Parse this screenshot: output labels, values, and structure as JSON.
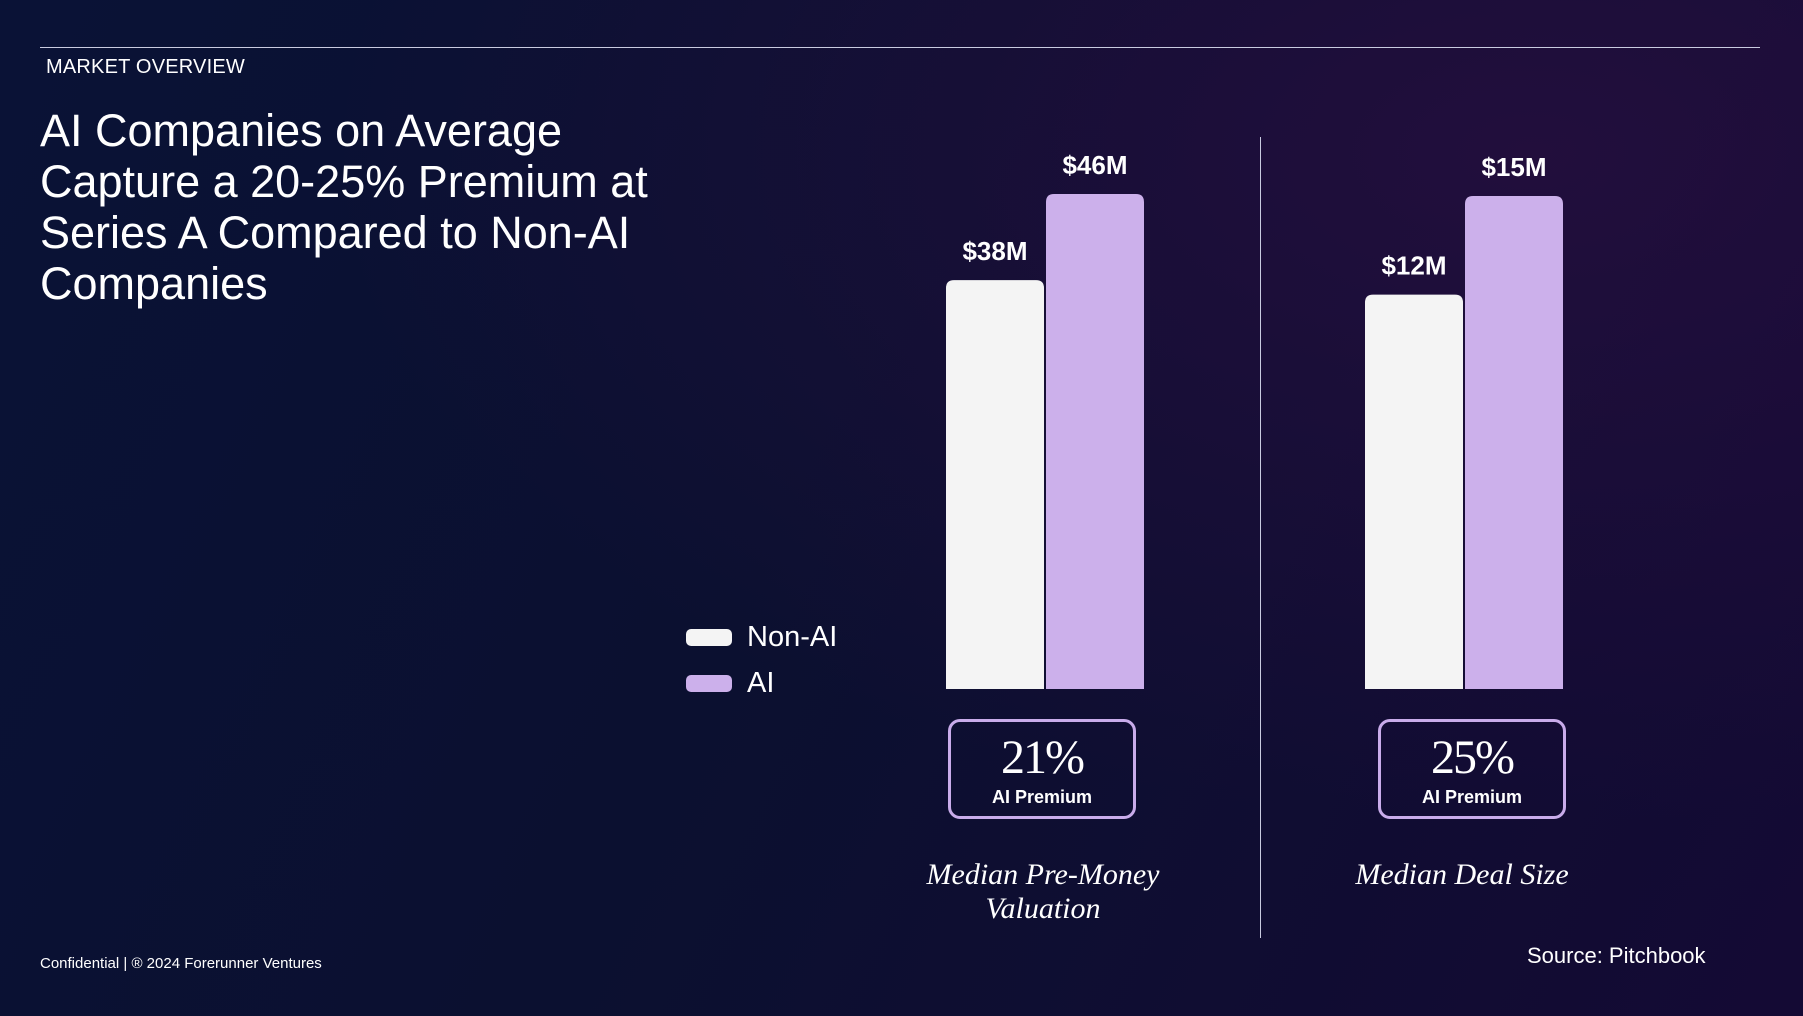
{
  "header": {
    "section_label": "MARKET OVERVIEW",
    "title": "AI Companies on Average Capture a 20-25% Premium at Series A Compared to Non-AI Companies"
  },
  "footer": {
    "confidential": "Confidential | ® 2024 Forerunner Ventures",
    "source": "Source: Pitchbook"
  },
  "colors": {
    "non_ai": "#f4f4f4",
    "ai": "#ccb0eb",
    "premium_border": "#c9aceb",
    "background": "#0b1030"
  },
  "legend": [
    {
      "label": "Non-AI",
      "color": "#f4f4f4"
    },
    {
      "label": "AI",
      "color": "#ccb0eb"
    }
  ],
  "chart_data": [
    {
      "type": "bar",
      "title": "Median Pre-Money Valuation",
      "categories": [
        "Non-AI",
        "AI"
      ],
      "values": [
        38,
        46
      ],
      "value_labels": [
        "$38M",
        "$46M"
      ],
      "unit": "$M",
      "premium": {
        "value": "21%",
        "label": "AI Premium"
      }
    },
    {
      "type": "bar",
      "title": "Median Deal Size",
      "categories": [
        "Non-AI",
        "AI"
      ],
      "values": [
        12,
        15
      ],
      "value_labels": [
        "$12M",
        "$15M"
      ],
      "unit": "$M",
      "premium": {
        "value": "25%",
        "label": "AI Premium"
      }
    }
  ]
}
